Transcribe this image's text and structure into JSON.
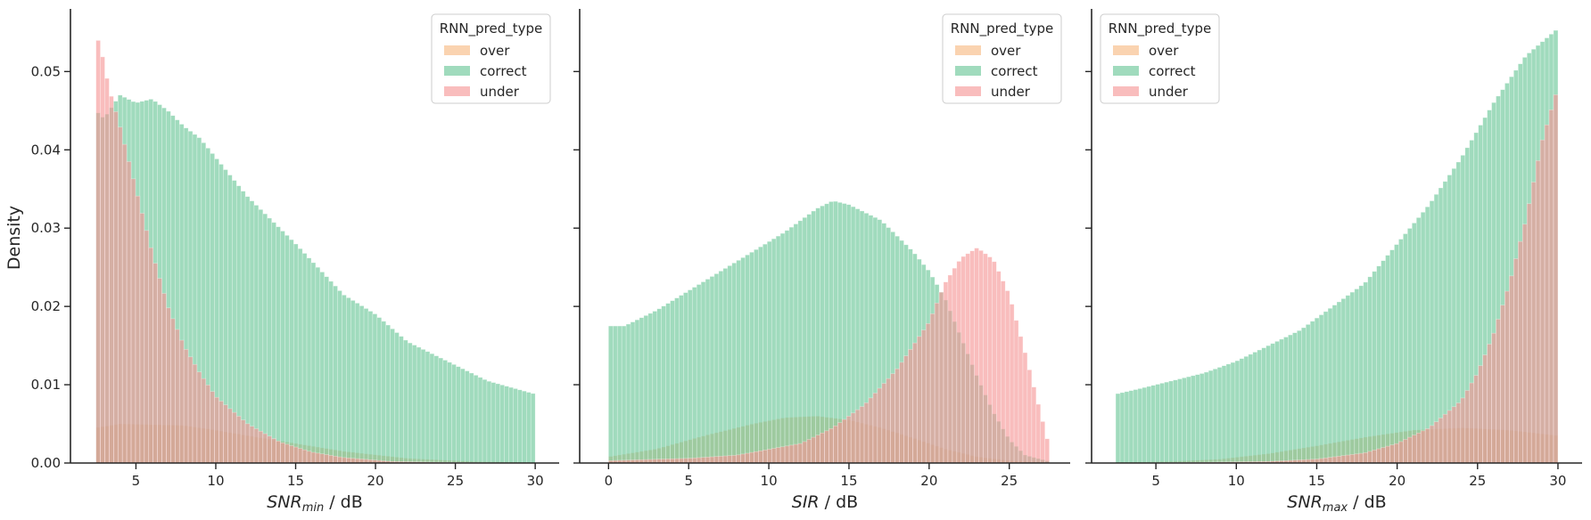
{
  "figure": {
    "ylabel": "Density",
    "legend_title": "RNN_pred_type",
    "legend_entries": [
      "over",
      "correct",
      "under"
    ],
    "colors": {
      "over": "#F7B880",
      "correct": "#66C595",
      "under": "#F59595",
      "axis": "#262626"
    }
  },
  "chart_data": [
    {
      "type": "histogram",
      "xlabel": {
        "main": "SNR",
        "sub": "min",
        "unit": " / dB"
      },
      "ylabel": "Density",
      "xlim": [
        0.9,
        31.5
      ],
      "ylim": [
        0,
        0.058
      ],
      "xticks": [
        5,
        10,
        15,
        20,
        25,
        30
      ],
      "yticks": [
        0.0,
        0.01,
        0.02,
        0.03,
        0.04,
        0.05
      ],
      "ytick_labels": [
        "0.00",
        "0.01",
        "0.02",
        "0.03",
        "0.04",
        "0.05"
      ],
      "legend_position": "top-right",
      "bin_range": [
        2.5,
        30
      ],
      "series": [
        {
          "name": "over",
          "points": [
            [
              2.5,
              0.0045
            ],
            [
              4,
              0.005
            ],
            [
              8,
              0.0048
            ],
            [
              10,
              0.0042
            ],
            [
              12,
              0.0035
            ],
            [
              15,
              0.0025
            ],
            [
              18,
              0.0015
            ],
            [
              22,
              0.0006
            ],
            [
              26,
              0.0002
            ],
            [
              30,
              0.0001
            ]
          ]
        },
        {
          "name": "correct",
          "points": [
            [
              2.5,
              0.045
            ],
            [
              3,
              0.044
            ],
            [
              4,
              0.047
            ],
            [
              5,
              0.046
            ],
            [
              6,
              0.0465
            ],
            [
              7,
              0.045
            ],
            [
              8,
              0.043
            ],
            [
              9,
              0.0415
            ],
            [
              10,
              0.039
            ],
            [
              12,
              0.034
            ],
            [
              15,
              0.028
            ],
            [
              18,
              0.0215
            ],
            [
              20,
              0.019
            ],
            [
              22,
              0.0155
            ],
            [
              25,
              0.0125
            ],
            [
              27,
              0.0105
            ],
            [
              30,
              0.0088
            ]
          ]
        },
        {
          "name": "under",
          "points": [
            [
              2.5,
              0.055
            ],
            [
              2.9,
              0.052
            ],
            [
              3.3,
              0.048
            ],
            [
              4,
              0.043
            ],
            [
              5,
              0.035
            ],
            [
              6,
              0.027
            ],
            [
              7,
              0.02
            ],
            [
              8,
              0.015
            ],
            [
              9,
              0.0115
            ],
            [
              10,
              0.0085
            ],
            [
              12,
              0.005
            ],
            [
              14,
              0.0027
            ],
            [
              16,
              0.0014
            ],
            [
              18,
              0.0007
            ],
            [
              21,
              0.0002
            ],
            [
              24,
              0.0001
            ],
            [
              30,
              0.0
            ]
          ]
        }
      ]
    },
    {
      "type": "histogram",
      "xlabel": {
        "main": "SIR",
        "sub": "",
        "unit": " / dB"
      },
      "ylabel": "",
      "xlim": [
        -1.8,
        28.8
      ],
      "ylim": [
        0,
        0.058
      ],
      "xticks": [
        0,
        5,
        10,
        15,
        20,
        25
      ],
      "yticks": [
        0.0,
        0.01,
        0.02,
        0.03,
        0.04,
        0.05
      ],
      "ytick_labels": [
        "",
        "",
        "",
        "",
        "",
        ""
      ],
      "legend_position": "top-right",
      "bin_range": [
        0,
        27.5
      ],
      "series": [
        {
          "name": "over",
          "points": [
            [
              0,
              0.0008
            ],
            [
              3,
              0.0018
            ],
            [
              6,
              0.0035
            ],
            [
              9,
              0.005
            ],
            [
              11,
              0.0058
            ],
            [
              13,
              0.006
            ],
            [
              15,
              0.0055
            ],
            [
              17,
              0.0045
            ],
            [
              19,
              0.0032
            ],
            [
              21,
              0.0018
            ],
            [
              23,
              0.0008
            ],
            [
              25,
              0.0003
            ],
            [
              27.5,
              0.0001
            ]
          ]
        },
        {
          "name": "correct",
          "points": [
            [
              0,
              0.0175
            ],
            [
              1,
              0.0175
            ],
            [
              3,
              0.0195
            ],
            [
              5,
              0.022
            ],
            [
              7,
              0.0245
            ],
            [
              9,
              0.027
            ],
            [
              11,
              0.0295
            ],
            [
              13,
              0.0325
            ],
            [
              14,
              0.0335
            ],
            [
              15,
              0.033
            ],
            [
              17,
              0.031
            ],
            [
              19,
              0.027
            ],
            [
              20,
              0.0245
            ],
            [
              21,
              0.021
            ],
            [
              22,
              0.016
            ],
            [
              23,
              0.011
            ],
            [
              24,
              0.0065
            ],
            [
              25,
              0.003
            ],
            [
              26,
              0.001
            ],
            [
              27.5,
              0.0002
            ]
          ]
        },
        {
          "name": "under",
          "points": [
            [
              0,
              0.0003
            ],
            [
              5,
              0.0006
            ],
            [
              8,
              0.001
            ],
            [
              12,
              0.0025
            ],
            [
              14,
              0.0045
            ],
            [
              16,
              0.0075
            ],
            [
              18,
              0.012
            ],
            [
              20,
              0.018
            ],
            [
              21,
              0.023
            ],
            [
              22,
              0.0262
            ],
            [
              23,
              0.0275
            ],
            [
              24,
              0.026
            ],
            [
              25,
              0.0215
            ],
            [
              26,
              0.014
            ],
            [
              27,
              0.006
            ],
            [
              27.5,
              0.002
            ]
          ]
        }
      ]
    },
    {
      "type": "histogram",
      "xlabel": {
        "main": "SNR",
        "sub": "max",
        "unit": " / dB"
      },
      "ylabel": "",
      "xlim": [
        1.0,
        31.5
      ],
      "ylim": [
        0,
        0.058
      ],
      "xticks": [
        5,
        10,
        15,
        20,
        25,
        30
      ],
      "yticks": [
        0.0,
        0.01,
        0.02,
        0.03,
        0.04,
        0.05
      ],
      "ytick_labels": [
        "",
        "",
        "",
        "",
        "",
        ""
      ],
      "legend_position": "top-left",
      "bin_range": [
        2.5,
        30
      ],
      "series": [
        {
          "name": "over",
          "points": [
            [
              2.5,
              0.0001
            ],
            [
              6,
              0.0002
            ],
            [
              9,
              0.0005
            ],
            [
              12,
              0.0012
            ],
            [
              15,
              0.0022
            ],
            [
              18,
              0.0033
            ],
            [
              21,
              0.0042
            ],
            [
              24,
              0.0045
            ],
            [
              27,
              0.0042
            ],
            [
              30,
              0.0035
            ]
          ]
        },
        {
          "name": "correct",
          "points": [
            [
              2.5,
              0.0088
            ],
            [
              4,
              0.0095
            ],
            [
              6,
              0.0105
            ],
            [
              8,
              0.0115
            ],
            [
              10,
              0.013
            ],
            [
              12,
              0.015
            ],
            [
              14,
              0.017
            ],
            [
              16,
              0.02
            ],
            [
              18,
              0.023
            ],
            [
              20,
              0.028
            ],
            [
              22,
              0.033
            ],
            [
              24,
              0.039
            ],
            [
              26,
              0.046
            ],
            [
              28,
              0.052
            ],
            [
              30,
              0.0555
            ]
          ]
        },
        {
          "name": "under",
          "points": [
            [
              2.5,
              0.0
            ],
            [
              8,
              0.0001
            ],
            [
              12,
              0.0002
            ],
            [
              15,
              0.0005
            ],
            [
              18,
              0.0013
            ],
            [
              20,
              0.0025
            ],
            [
              22,
              0.0045
            ],
            [
              24,
              0.008
            ],
            [
              25,
              0.0115
            ],
            [
              26,
              0.0165
            ],
            [
              27,
              0.023
            ],
            [
              28,
              0.031
            ],
            [
              29,
              0.041
            ],
            [
              30,
              0.048
            ]
          ]
        }
      ]
    }
  ]
}
